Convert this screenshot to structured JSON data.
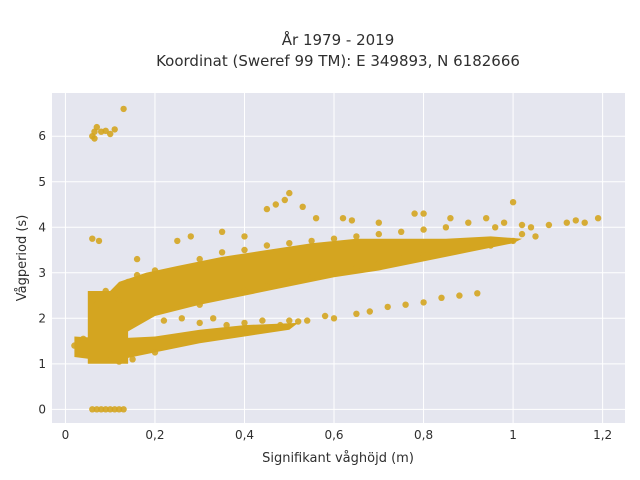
{
  "chart_data": {
    "type": "scatter",
    "title": "År 1979 - 2019",
    "subtitle": "Koordinat (Sweref 99 TM): E 349893, N 6182666",
    "xlabel": "Signifikant våghöjd (m)",
    "ylabel": "Vågperiod (s)",
    "xlim": [
      -0.03,
      1.25
    ],
    "ylim": [
      -0.3,
      6.95
    ],
    "x_ticks": [
      0,
      0.2,
      0.4,
      0.6,
      0.8,
      1,
      1.2
    ],
    "x_tick_labels": [
      "0",
      "0,2",
      "0,4",
      "0,6",
      "0,8",
      "1",
      "1,2"
    ],
    "y_ticks": [
      0,
      1,
      2,
      3,
      4,
      5,
      6
    ],
    "y_tick_labels": [
      "0",
      "1",
      "2",
      "3",
      "4",
      "5",
      "6"
    ],
    "grid": true,
    "marker_color": "#D4A520",
    "plot_background": "#E5E6EF",
    "points": [
      [
        0.06,
        6.0
      ],
      [
        0.065,
        6.1
      ],
      [
        0.07,
        6.2
      ],
      [
        0.065,
        5.95
      ],
      [
        0.08,
        6.1
      ],
      [
        0.09,
        6.12
      ],
      [
        0.1,
        6.05
      ],
      [
        0.11,
        6.15
      ],
      [
        0.13,
        6.6
      ],
      [
        0.06,
        3.75
      ],
      [
        0.075,
        3.7
      ],
      [
        0.06,
        0
      ],
      [
        0.07,
        0
      ],
      [
        0.08,
        0
      ],
      [
        0.09,
        0
      ],
      [
        0.1,
        0
      ],
      [
        0.11,
        0
      ],
      [
        0.12,
        0
      ],
      [
        0.13,
        0
      ],
      [
        0.5,
        4.75
      ],
      [
        0.49,
        4.6
      ],
      [
        0.53,
        4.45
      ],
      [
        0.47,
        4.5
      ],
      [
        0.45,
        4.4
      ],
      [
        0.56,
        4.2
      ],
      [
        0.62,
        4.2
      ],
      [
        0.64,
        4.15
      ],
      [
        0.7,
        4.1
      ],
      [
        0.78,
        4.3
      ],
      [
        0.8,
        4.3
      ],
      [
        0.86,
        4.2
      ],
      [
        0.9,
        4.1
      ],
      [
        0.94,
        4.2
      ],
      [
        0.96,
        4.0
      ],
      [
        0.98,
        4.1
      ],
      [
        1.0,
        4.55
      ],
      [
        1.02,
        4.05
      ],
      [
        1.04,
        4.0
      ],
      [
        1.08,
        4.05
      ],
      [
        1.12,
        4.1
      ],
      [
        1.14,
        4.15
      ],
      [
        1.16,
        4.1
      ],
      [
        1.19,
        4.2
      ],
      [
        1.05,
        3.8
      ],
      [
        1.02,
        3.85
      ],
      [
        0.16,
        3.3
      ],
      [
        0.2,
        3.05
      ],
      [
        0.25,
        3.7
      ],
      [
        0.28,
        3.8
      ],
      [
        0.35,
        3.9
      ],
      [
        0.4,
        3.8
      ],
      [
        0.22,
        1.95
      ],
      [
        0.26,
        2.0
      ],
      [
        0.3,
        1.9
      ],
      [
        0.33,
        2.0
      ],
      [
        0.36,
        1.85
      ],
      [
        0.4,
        1.9
      ],
      [
        0.44,
        1.95
      ],
      [
        0.48,
        1.85
      ],
      [
        0.5,
        1.95
      ],
      [
        0.42,
        1.75
      ],
      [
        0.47,
        1.8
      ],
      [
        0.52,
        1.93
      ],
      [
        0.54,
        1.95
      ],
      [
        0.58,
        2.05
      ],
      [
        0.6,
        2.0
      ],
      [
        0.65,
        2.1
      ],
      [
        0.68,
        2.15
      ],
      [
        0.72,
        2.25
      ],
      [
        0.76,
        2.3
      ],
      [
        0.8,
        2.35
      ],
      [
        0.84,
        2.45
      ],
      [
        0.88,
        2.5
      ],
      [
        0.92,
        2.55
      ],
      [
        0.1,
        1.2
      ],
      [
        0.15,
        1.1
      ],
      [
        0.2,
        1.25
      ],
      [
        0.12,
        1.05
      ],
      [
        0.02,
        1.4
      ],
      [
        0.04,
        1.55
      ],
      [
        0.09,
        2.6
      ],
      [
        0.12,
        2.4
      ],
      [
        0.14,
        2.8
      ],
      [
        0.18,
        2.9
      ],
      [
        0.07,
        2.3
      ],
      [
        0.16,
        2.95
      ],
      [
        0.3,
        2.3
      ],
      [
        0.35,
        2.5
      ],
      [
        0.4,
        2.6
      ],
      [
        0.45,
        2.7
      ],
      [
        0.5,
        2.8
      ],
      [
        0.55,
        2.9
      ],
      [
        0.6,
        3.0
      ],
      [
        0.65,
        3.1
      ],
      [
        0.7,
        3.2
      ],
      [
        0.75,
        3.3
      ],
      [
        0.8,
        3.4
      ],
      [
        0.85,
        3.45
      ],
      [
        0.9,
        3.55
      ],
      [
        0.95,
        3.6
      ],
      [
        1.0,
        3.7
      ],
      [
        0.3,
        3.3
      ],
      [
        0.35,
        3.45
      ],
      [
        0.4,
        3.5
      ],
      [
        0.45,
        3.6
      ],
      [
        0.5,
        3.65
      ],
      [
        0.55,
        3.7
      ],
      [
        0.6,
        3.75
      ],
      [
        0.65,
        3.8
      ],
      [
        0.7,
        3.85
      ],
      [
        0.75,
        3.9
      ],
      [
        0.8,
        3.95
      ],
      [
        0.85,
        4.0
      ]
    ]
  }
}
